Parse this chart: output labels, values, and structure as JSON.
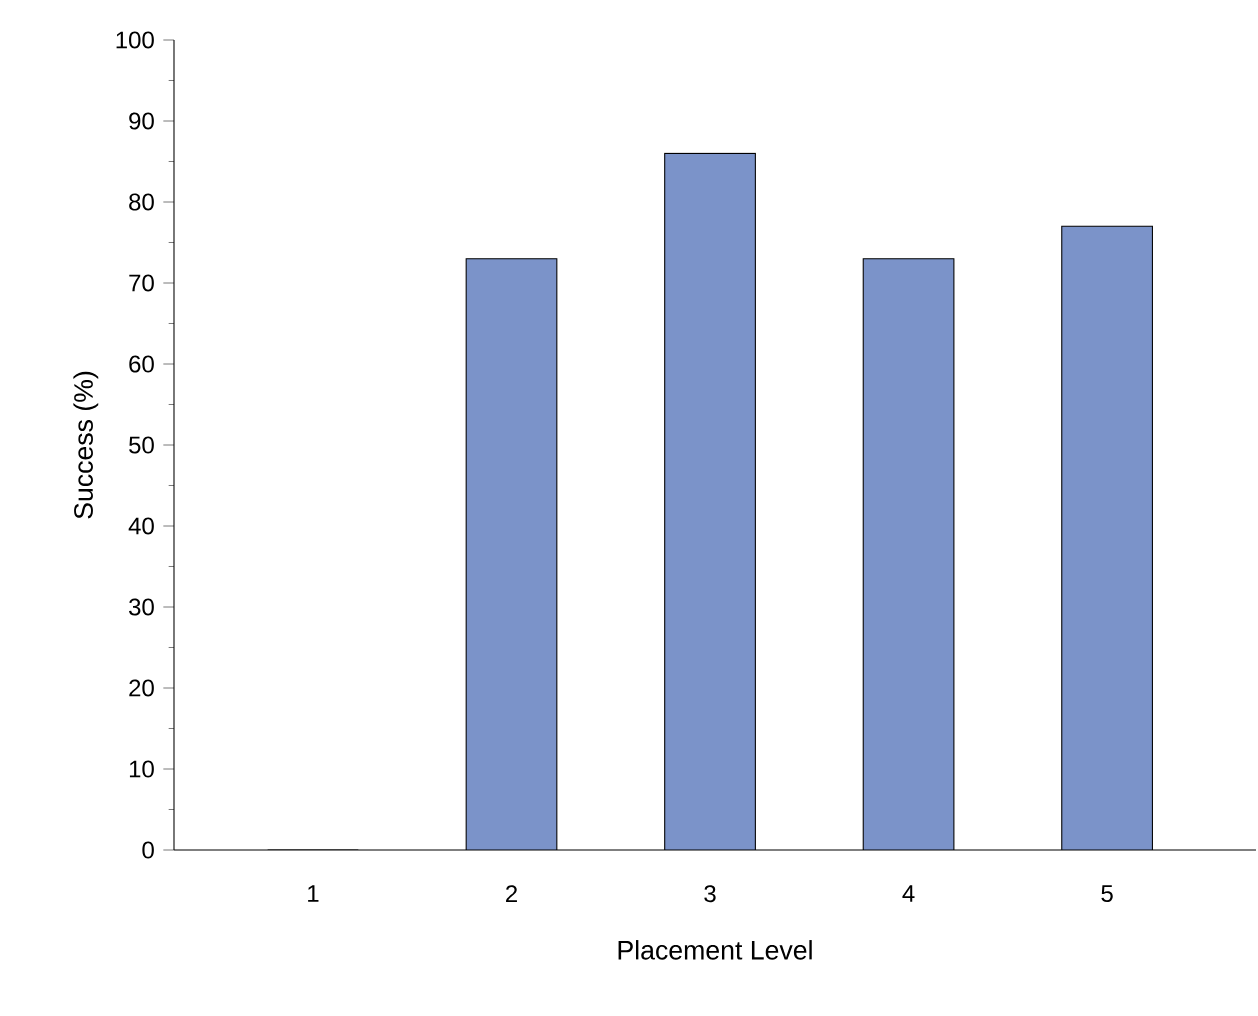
{
  "chart_data": {
    "type": "bar",
    "xlabel": "Placement Level",
    "ylabel": "Success (%)",
    "categories": [
      "1",
      "2",
      "3",
      "4",
      "5"
    ],
    "values": [
      0,
      73,
      86,
      73,
      77
    ],
    "color": "#7b93c9",
    "ylim": [
      0,
      100
    ],
    "yticks": [
      0,
      10,
      20,
      30,
      40,
      50,
      60,
      70,
      80,
      90,
      100
    ]
  }
}
